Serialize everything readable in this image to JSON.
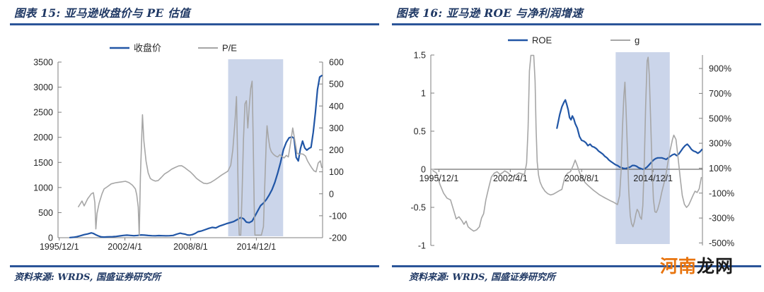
{
  "theme": {
    "accent_rule_color": "#2B5599",
    "heading_color": "#1F3864",
    "highlight_color": "#CBD5EA",
    "blue_series_color": "#2156A6",
    "gray_series_color": "#A6A6A6",
    "axis_line_color": "#7F7F7F",
    "tick_label_color": "#262626"
  },
  "watermark": {
    "prefix": "河南",
    "suffix": "龙网",
    "prefix_color": "#E8740E",
    "suffix_color": "#1A1A1A"
  },
  "chart_data": [
    {
      "type": "line",
      "title": "图表 15: 亚马逊收盘价与 PE 估值",
      "source": "资料来源: WRDS, 国盛证券研究所",
      "legend_position": "top",
      "grid": false,
      "x_range": [
        1995.8,
        2021.3
      ],
      "x_ticks": [
        {
          "year": 1995.92,
          "label": "1995/12/1"
        },
        {
          "year": 2002.25,
          "label": "2002/4/1"
        },
        {
          "year": 2008.58,
          "label": "2008/8/1"
        },
        {
          "year": 2014.92,
          "label": "2014/12/1"
        }
      ],
      "left_axis": {
        "min": 0,
        "max": 3500,
        "ticks": [
          3500,
          3000,
          2500,
          2000,
          1500,
          1000,
          500,
          0
        ],
        "suffix": ""
      },
      "right_axis": {
        "min": -200,
        "max": 600,
        "ticks": [
          600,
          500,
          400,
          300,
          200,
          100,
          0,
          -100,
          -200
        ],
        "suffix": ""
      },
      "highlight_span": {
        "from": 2012.2,
        "to": 2017.5
      },
      "series": [
        {
          "key": "closing-price",
          "name": "收盘价",
          "axis": "left",
          "color": "#2156A6",
          "width": 2.2,
          "x": [
            1996.95,
            1997.29,
            1997.63,
            1997.98,
            1998.32,
            1998.66,
            1999.01,
            1999.21,
            1999.42,
            1999.69,
            1999.97,
            2000.24,
            2000.51,
            2000.79,
            2001.06,
            2001.41,
            2001.75,
            2002.09,
            2002.44,
            2002.78,
            2003.12,
            2003.46,
            2003.81,
            2004.15,
            2004.49,
            2004.84,
            2005.18,
            2005.52,
            2005.86,
            2006.21,
            2006.55,
            2006.89,
            2007.24,
            2007.58,
            2007.78,
            2008.06,
            2008.26,
            2008.47,
            2008.74,
            2009.02,
            2009.29,
            2009.64,
            2009.98,
            2010.32,
            2010.66,
            2011.01,
            2011.35,
            2011.69,
            2012.04,
            2012.38,
            2012.72,
            2013.07,
            2013.41,
            2013.68,
            2013.96,
            2014.23,
            2014.51,
            2014.78,
            2015.06,
            2015.33,
            2015.6,
            2015.88,
            2016.15,
            2016.43,
            2016.7,
            2016.98,
            2017.25,
            2017.52,
            2017.8,
            2018.07,
            2018.35,
            2018.55,
            2018.76,
            2018.96,
            2019.17,
            2019.37,
            2019.58,
            2019.78,
            2019.99,
            2020.19,
            2020.4,
            2020.61,
            2020.81,
            2021.02,
            2021.22
          ],
          "y": [
            3,
            8,
            20,
            40,
            60,
            75,
            95,
            85,
            60,
            35,
            15,
            12,
            15,
            18,
            20,
            25,
            35,
            45,
            50,
            45,
            40,
            45,
            55,
            50,
            43,
            40,
            38,
            42,
            40,
            38,
            40,
            45,
            70,
            90,
            80,
            70,
            55,
            50,
            60,
            85,
            120,
            135,
            160,
            185,
            205,
            195,
            230,
            255,
            280,
            300,
            320,
            360,
            400,
            380,
            310,
            300,
            330,
            430,
            540,
            640,
            690,
            760,
            850,
            960,
            1100,
            1290,
            1500,
            1750,
            1900,
            1990,
            2010,
            1980,
            1600,
            1530,
            1780,
            1925,
            1790,
            1745,
            1780,
            1800,
            2100,
            2500,
            2950,
            3200,
            3230
          ]
        },
        {
          "key": "pe-ratio",
          "name": "P/E",
          "axis": "right",
          "color": "#A6A6A6",
          "width": 1.6,
          "x": [
            1997.77,
            1998.11,
            1998.32,
            1998.66,
            1999.01,
            1999.21,
            1999.35,
            1999.45,
            1999.56,
            1999.76,
            2000.04,
            2000.24,
            2000.58,
            2000.93,
            2001.41,
            2001.89,
            2002.3,
            2002.64,
            2002.98,
            2003.26,
            2003.39,
            2003.53,
            2003.63,
            2003.74,
            2003.94,
            2004.08,
            2004.28,
            2004.49,
            2004.7,
            2004.9,
            2005.18,
            2005.45,
            2005.73,
            2006.07,
            2006.41,
            2006.75,
            2007.1,
            2007.44,
            2007.72,
            2007.99,
            2008.26,
            2008.54,
            2008.81,
            2009.16,
            2009.5,
            2009.84,
            2010.18,
            2010.53,
            2010.87,
            2011.21,
            2011.56,
            2011.9,
            2012.17,
            2012.45,
            2012.65,
            2012.86,
            2013.0,
            2013.1,
            2013.2,
            2013.27,
            2013.41,
            2013.54,
            2013.68,
            2013.82,
            2013.96,
            2014.09,
            2014.23,
            2014.37,
            2014.51,
            2014.61,
            2014.71,
            2014.78,
            2014.99,
            2015.19,
            2015.4,
            2015.6,
            2015.74,
            2015.88,
            2015.95,
            2016.08,
            2016.22,
            2016.36,
            2016.56,
            2016.77,
            2016.98,
            2017.18,
            2017.39,
            2017.59,
            2017.8,
            2018.0,
            2018.21,
            2018.42,
            2018.62,
            2018.83,
            2019.03,
            2019.24,
            2019.44,
            2019.65,
            2019.85,
            2020.06,
            2020.26,
            2020.47,
            2020.67,
            2020.88,
            2021.08,
            2021.22
          ],
          "y": [
            -59,
            -33,
            -55,
            -23,
            0,
            5,
            -40,
            -160,
            -90,
            -43,
            0,
            22,
            33,
            45,
            51,
            54,
            57,
            51,
            39,
            22,
            -5,
            -60,
            -190,
            80,
            360,
            240,
            150,
            95,
            70,
            63,
            58,
            60,
            73,
            90,
            100,
            112,
            120,
            127,
            128,
            120,
            110,
            100,
            88,
            70,
            58,
            48,
            46,
            52,
            62,
            73,
            85,
            95,
            103,
            130,
            200,
            330,
            443,
            200,
            -100,
            -188,
            -188,
            0,
            250,
            410,
            424,
            300,
            395,
            480,
            513,
            250,
            -50,
            -188,
            -188,
            -188,
            -188,
            -150,
            60,
            250,
            310,
            255,
            210,
            192,
            180,
            172,
            168,
            178,
            170,
            163,
            175,
            168,
            230,
            300,
            245,
            185,
            180,
            182,
            180,
            172,
            150,
            133,
            118,
            105,
            100,
            140,
            150,
            120
          ]
        }
      ]
    },
    {
      "type": "line",
      "title": "图表 16: 亚马逊 ROE 与净利润增速",
      "source": "资料来源: WRDS, 国盛证券研究所",
      "legend_position": "top",
      "grid": false,
      "x_range": [
        1995.2,
        2019.3
      ],
      "x_ticks": [
        {
          "year": 1995.92,
          "label": "1995/12/1"
        },
        {
          "year": 2002.25,
          "label": "2002/4/1"
        },
        {
          "year": 2008.58,
          "label": "2008/8/1"
        },
        {
          "year": 2014.92,
          "label": "2014/12/1"
        }
      ],
      "left_axis": {
        "min": -1,
        "max": 1.5,
        "ticks": [
          1.5,
          1,
          0.5,
          0,
          -0.5,
          -1
        ],
        "suffix": ""
      },
      "right_axis": {
        "min": -520,
        "max": 1008,
        "ticks": [
          900,
          700,
          500,
          300,
          100,
          -100,
          -300,
          -500
        ],
        "suffix": "%"
      },
      "highlight_span": {
        "from": 2011.6,
        "to": 2016.4
      },
      "series": [
        {
          "key": "roe",
          "name": "ROE",
          "axis": "left",
          "color": "#2156A6",
          "width": 2.2,
          "x": [
            2006.39,
            2006.64,
            2006.83,
            2007.01,
            2007.14,
            2007.26,
            2007.39,
            2007.51,
            2007.64,
            2007.76,
            2007.89,
            2008.01,
            2008.2,
            2008.39,
            2008.58,
            2008.76,
            2008.95,
            2009.14,
            2009.33,
            2009.51,
            2009.7,
            2009.89,
            2010.08,
            2010.26,
            2010.45,
            2010.64,
            2010.83,
            2011.01,
            2011.2,
            2011.39,
            2011.58,
            2011.76,
            2011.95,
            2012.14,
            2012.33,
            2012.51,
            2012.7,
            2012.89,
            2013.08,
            2013.26,
            2013.45,
            2013.64,
            2013.83,
            2014.01,
            2014.2,
            2014.39,
            2014.58,
            2014.76,
            2014.95,
            2015.14,
            2015.33,
            2015.51,
            2015.7,
            2015.89,
            2016.08,
            2016.26,
            2016.45,
            2016.64,
            2016.83,
            2017.01,
            2017.2,
            2017.39,
            2017.58,
            2017.76,
            2017.95,
            2018.14,
            2018.33,
            2018.51,
            2018.7,
            2018.89,
            2019.08,
            2019.26
          ],
          "y": [
            0.54,
            0.72,
            0.82,
            0.88,
            0.91,
            0.85,
            0.78,
            0.68,
            0.65,
            0.7,
            0.66,
            0.6,
            0.54,
            0.43,
            0.38,
            0.37,
            0.35,
            0.31,
            0.33,
            0.3,
            0.29,
            0.27,
            0.24,
            0.22,
            0.2,
            0.17,
            0.15,
            0.12,
            0.1,
            0.08,
            0.06,
            0.05,
            0.03,
            0.02,
            0.01,
            0.01,
            0.02,
            0.03,
            0.05,
            0.05,
            0.04,
            0.02,
            0.01,
            0.0,
            0.01,
            0.03,
            0.06,
            0.09,
            0.12,
            0.14,
            0.15,
            0.15,
            0.15,
            0.14,
            0.13,
            0.15,
            0.17,
            0.19,
            0.2,
            0.18,
            0.2,
            0.24,
            0.28,
            0.31,
            0.33,
            0.3,
            0.26,
            0.24,
            0.23,
            0.21,
            0.23,
            0.26
          ]
        },
        {
          "key": "net-profit-growth",
          "name": "g",
          "axis": "right",
          "color": "#A6A6A6",
          "width": 1.6,
          "x": [
            1995.39,
            1995.7,
            1996.01,
            1996.33,
            1996.64,
            1996.95,
            1997.2,
            1997.45,
            1997.7,
            1997.95,
            1998.14,
            1998.33,
            1998.51,
            1998.76,
            1999.01,
            1999.26,
            1999.51,
            1999.7,
            1999.89,
            2000.08,
            2000.33,
            2000.58,
            2000.83,
            2001.08,
            2001.33,
            2001.58,
            2001.76,
            2002.01,
            2002.26,
            2002.51,
            2002.76,
            2003.01,
            2003.26,
            2003.51,
            2003.7,
            2003.83,
            2003.95,
            2004.08,
            2004.33,
            2004.45,
            2004.54,
            2004.64,
            2004.76,
            2004.89,
            2005.08,
            2005.33,
            2005.58,
            2005.83,
            2006.08,
            2006.33,
            2006.58,
            2006.83,
            2007.08,
            2007.33,
            2007.58,
            2007.83,
            2008.01,
            2008.2,
            2008.39,
            2008.64,
            2008.89,
            2009.14,
            2009.39,
            2009.64,
            2009.89,
            2010.14,
            2010.39,
            2010.64,
            2010.89,
            2011.14,
            2011.39,
            2011.58,
            2011.76,
            2011.95,
            2012.08,
            2012.2,
            2012.33,
            2012.42,
            2012.51,
            2012.64,
            2012.76,
            2012.89,
            2013.01,
            2013.14,
            2013.26,
            2013.39,
            2013.51,
            2013.64,
            2013.76,
            2013.89,
            2014.01,
            2014.14,
            2014.26,
            2014.39,
            2014.48,
            2014.58,
            2014.7,
            2014.83,
            2014.95,
            2015.08,
            2015.2,
            2015.33,
            2015.51,
            2015.7,
            2015.89,
            2016.08,
            2016.26,
            2016.45,
            2016.64,
            2016.76,
            2016.95,
            2017.14,
            2017.33,
            2017.51,
            2017.7,
            2017.89,
            2018.08,
            2018.26,
            2018.45,
            2018.64,
            2018.83,
            2019.01,
            2019.2
          ],
          "y": [
            80,
            62,
            -30,
            -100,
            -140,
            -155,
            -230,
            -307,
            -290,
            -320,
            -350,
            -325,
            -370,
            -390,
            -405,
            -395,
            -370,
            -300,
            -265,
            -155,
            -60,
            30,
            60,
            72,
            50,
            65,
            78,
            66,
            45,
            33,
            45,
            62,
            55,
            50,
            140,
            420,
            880,
            1005,
            1005,
            800,
            420,
            150,
            45,
            -10,
            -50,
            -85,
            -105,
            -115,
            -108,
            -95,
            -82,
            -70,
            25,
            60,
            72,
            120,
            165,
            120,
            65,
            20,
            -15,
            -38,
            -58,
            -78,
            -95,
            -112,
            -125,
            -138,
            -150,
            -162,
            -172,
            -182,
            -192,
            -120,
            80,
            420,
            680,
            790,
            600,
            250,
            -80,
            -280,
            -345,
            -370,
            -330,
            -270,
            -230,
            -250,
            -290,
            -310,
            -200,
            150,
            600,
            960,
            990,
            850,
            500,
            100,
            -150,
            -250,
            -255,
            -230,
            -170,
            -90,
            -20,
            60,
            160,
            250,
            330,
            365,
            330,
            180,
            20,
            -120,
            -190,
            -215,
            -195,
            -160,
            -120,
            -85,
            -95,
            -65,
            25
          ]
        }
      ]
    }
  ]
}
